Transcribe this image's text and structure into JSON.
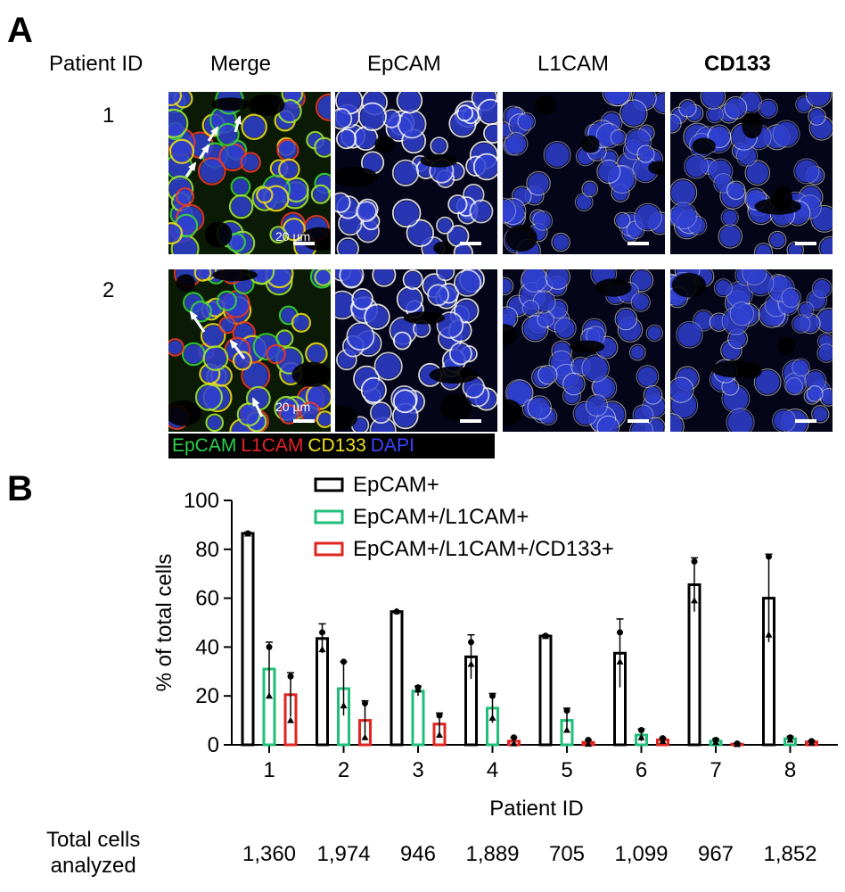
{
  "panel_a": {
    "letter": "A",
    "row_header": "Patient ID",
    "columns": [
      "Merge",
      "EpCAM",
      "L1CAM",
      "CD133"
    ],
    "rows": [
      "1",
      "2"
    ],
    "scale_bar_label": "20 µm",
    "channel_legend": [
      {
        "label": "EpCAM",
        "color": "#2bd14a"
      },
      {
        "label": "L1CAM",
        "color": "#e8222a"
      },
      {
        "label": "CD133",
        "color": "#f4e11b"
      },
      {
        "label": "DAPI",
        "color": "#2b34e0"
      }
    ],
    "colors": {
      "nuclei": "#2f3fd0",
      "membrane": "#ffffff",
      "arrow": "#ffffff"
    }
  },
  "panel_b": {
    "letter": "B",
    "total_cells_label_line1": "Total cells",
    "total_cells_label_line2": "analyzed",
    "total_cells": [
      "1,360",
      "1,974",
      "946",
      "1,889",
      "705",
      "1,099",
      "967",
      "1,852"
    ]
  },
  "chart_data": {
    "type": "bar",
    "xlabel": "Patient ID",
    "ylabel": "% of total cells",
    "ylim": [
      0,
      100
    ],
    "yticks": [
      0,
      20,
      40,
      60,
      80,
      100
    ],
    "categories": [
      "1",
      "2",
      "3",
      "4",
      "5",
      "6",
      "7",
      "8"
    ],
    "legend_placement": "top",
    "series": [
      {
        "name": "EpCAM+",
        "color": "#000000",
        "values": [
          86.5,
          43.5,
          54.5,
          36,
          44.5,
          37.5,
          65.5,
          60
        ],
        "errors": [
          0.5,
          6,
          0.3,
          9,
          0.5,
          14,
          11,
          18
        ],
        "points": [
          [
            86.5,
            86.3
          ],
          [
            46,
            39
          ],
          [
            54.5,
            54.6
          ],
          [
            42,
            33
          ],
          [
            44.6,
            44.4
          ],
          [
            46,
            34
          ],
          [
            75,
            59
          ],
          [
            77,
            45
          ]
        ]
      },
      {
        "name": "EpCAM+/L1CAM+",
        "color": "#1fbf7a",
        "values": [
          31,
          23,
          22,
          15,
          10,
          4,
          1.5,
          2.5
        ],
        "errors": [
          11,
          11,
          2,
          6,
          5,
          2.5,
          1,
          1
        ],
        "points": [
          [
            40,
            20
          ],
          [
            34,
            16
          ],
          [
            23.5,
            22.5
          ],
          [
            20,
            11
          ],
          [
            14,
            6
          ],
          [
            6,
            3
          ],
          [
            2,
            1
          ],
          [
            3,
            2
          ]
        ]
      },
      {
        "name": "EpCAM+/L1CAM+/CD133+",
        "color": "#e0241f",
        "values": [
          20.5,
          10,
          8.5,
          1.5,
          1,
          2,
          0.3,
          1.2
        ],
        "errors": [
          9,
          8,
          4.5,
          1.5,
          1,
          0.8,
          0.3,
          0.5
        ],
        "points": [
          [
            28,
            10
          ],
          [
            17,
            3
          ],
          [
            12,
            4
          ],
          [
            3,
            0.5
          ],
          [
            2,
            0.3
          ],
          [
            2.7,
            1.5
          ],
          [
            0.5,
            0.2
          ],
          [
            1.5,
            0.8
          ]
        ]
      }
    ]
  }
}
